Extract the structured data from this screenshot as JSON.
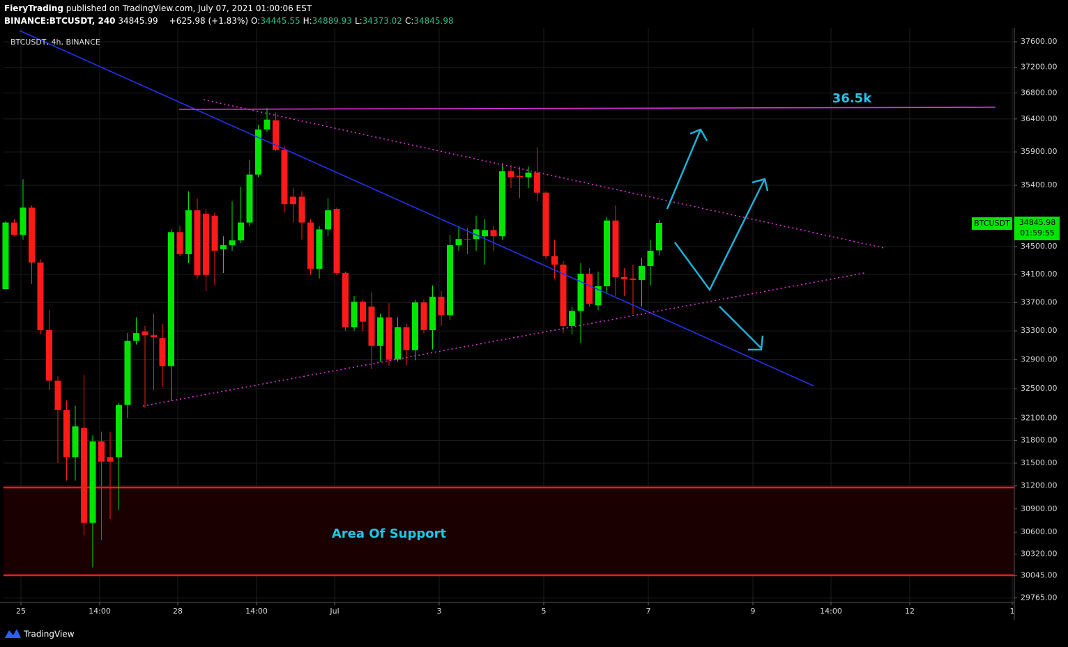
{
  "header": {
    "author": "FieryTrading",
    "published": "published on TradingView.com, July 07, 2021 01:00:06 EST",
    "symbol": "BINANCE:BTCUSDT, 240",
    "price": "34845.99",
    "change": "+625.98 (+1.83%)",
    "ohlc": [
      {
        "key": "O:",
        "value": "34445.55"
      },
      {
        "key": "H:",
        "value": "34889.93"
      },
      {
        "key": "L:",
        "value": "34373.02"
      },
      {
        "key": "C:",
        "value": "34845.98"
      }
    ]
  },
  "chart_data": {
    "type": "candlestick",
    "legend": "BTCUSDT, 4h, BINANCE",
    "log_scale": true,
    "grid": true,
    "up_color": "#00e600",
    "down_color": "#ff1a1a",
    "annotations": [
      "36.5k",
      "Area Of Support"
    ],
    "last_price": {
      "symbol": "BTCUSDT",
      "price": "34845.98",
      "countdown": "01:59:55"
    },
    "x": [
      0,
      1,
      2,
      3,
      4,
      5,
      6,
      7,
      8,
      9,
      10,
      11,
      12,
      13,
      14,
      15,
      16,
      17,
      18,
      19,
      20,
      21,
      22,
      23,
      24,
      25,
      26,
      27,
      28,
      29,
      30,
      31,
      32,
      33,
      34,
      35,
      36,
      37,
      38,
      39,
      40,
      41,
      42,
      43,
      44,
      45,
      46,
      47,
      48,
      49,
      50,
      51,
      52,
      53,
      54,
      55,
      56,
      57,
      58,
      59,
      60,
      61,
      62,
      63,
      64,
      65,
      66,
      67,
      68,
      69,
      70,
      71,
      72,
      73,
      74,
      75
    ],
    "open": [
      33890,
      34850,
      34670,
      35070,
      34270,
      33310,
      32610,
      32210,
      31580,
      31970,
      30720,
      31790,
      31580,
      31580,
      32280,
      33160,
      33290,
      33240,
      33200,
      32810,
      34710,
      34390,
      35030,
      34980,
      34950,
      34460,
      34520,
      34590,
      34850,
      35560,
      36240,
      36380,
      35930,
      35230,
      35230,
      34850,
      34180,
      34750,
      35050,
      34120,
      33350,
      33710,
      33640,
      33090,
      33490,
      32900,
      33350,
      33030,
      33700,
      33310,
      33780,
      33520,
      34520,
      34610,
      34610,
      34650,
      34740,
      34650,
      35610,
      35540,
      35520,
      35590,
      35290,
      34360,
      34240,
      33370,
      33580,
      34110,
      33660,
      33930,
      34880,
      34060,
      34040,
      34020,
      34220,
      34445.55
    ],
    "high": [
      34870,
      34900,
      35490,
      35100,
      34320,
      33590,
      32670,
      32340,
      32270,
      32690,
      31870,
      31920,
      31920,
      32310,
      33270,
      33490,
      33370,
      33540,
      33400,
      34750,
      34800,
      35310,
      35210,
      35050,
      35000,
      34650,
      35160,
      35380,
      35780,
      36310,
      36570,
      36500,
      35990,
      35360,
      35310,
      34900,
      34800,
      35210,
      35070,
      34140,
      33790,
      33740,
      33840,
      33540,
      33690,
      33490,
      33400,
      33740,
      33740,
      33940,
      33860,
      34670,
      34800,
      34770,
      34950,
      34900,
      34800,
      35730,
      35700,
      35680,
      35680,
      35970,
      35310,
      34600,
      34290,
      33640,
      34260,
      34190,
      34140,
      34930,
      35100,
      34190,
      34240,
      34340,
      34600,
      34889.93
    ],
    "low": [
      33890,
      34650,
      34600,
      33960,
      33250,
      32480,
      31500,
      31270,
      31270,
      30560,
      30150,
      30500,
      30770,
      30890,
      32100,
      33110,
      32240,
      32480,
      32530,
      32340,
      34360,
      34260,
      34040,
      33860,
      33940,
      34120,
      34440,
      34550,
      34800,
      35520,
      36200,
      35910,
      35000,
      34850,
      34600,
      34090,
      34040,
      34650,
      34090,
      33300,
      33300,
      33300,
      32770,
      32870,
      32820,
      32870,
      32820,
      32890,
      33270,
      33040,
      33370,
      33450,
      34440,
      34390,
      34440,
      34240,
      34440,
      34600,
      35360,
      35210,
      35360,
      35160,
      34320,
      34040,
      33270,
      33250,
      33130,
      33640,
      33590,
      33840,
      33790,
      33790,
      33540,
      33640,
      33940,
      34373.02
    ],
    "close": [
      34850,
      34670,
      35070,
      34270,
      33310,
      32610,
      32210,
      31580,
      31990,
      30720,
      31790,
      31520,
      31520,
      32280,
      33160,
      33270,
      33240,
      33210,
      32810,
      34710,
      34390,
      35030,
      34090,
      34090,
      34440,
      34520,
      34590,
      34850,
      35560,
      36240,
      36390,
      35930,
      35120,
      35120,
      34850,
      34180,
      34750,
      35030,
      34120,
      33350,
      33710,
      33430,
      33090,
      33490,
      32900,
      33350,
      33030,
      33700,
      33310,
      33780,
      33520,
      34520,
      34610,
      34600,
      34750,
      34740,
      34650,
      35610,
      35520,
      35520,
      35590,
      35290,
      34360,
      34240,
      33370,
      33580,
      34110,
      33680,
      33930,
      34880,
      34060,
      34030,
      34020,
      34220,
      34440,
      34845.98
    ],
    "xlim": [
      -0.24,
      115.76
    ],
    "xticks": [
      {
        "value": 1.76,
        "label": "25"
      },
      {
        "value": 10.8,
        "label": "14:00"
      },
      {
        "value": 19.76,
        "label": "28"
      },
      {
        "value": 28.8,
        "label": "14:00"
      },
      {
        "value": 37.76,
        "label": "Jul"
      },
      {
        "value": 49.76,
        "label": "3"
      },
      {
        "value": 61.76,
        "label": "5"
      },
      {
        "value": 73.76,
        "label": "7"
      },
      {
        "value": 85.76,
        "label": "9"
      },
      {
        "value": 94.72,
        "label": "14:00"
      },
      {
        "value": 103.76,
        "label": "12"
      },
      {
        "value": 115.52,
        "label": "1"
      }
    ],
    "ylim": [
      29710,
      37820
    ],
    "yticks": [
      {
        "value": 37600,
        "label": "37600.00"
      },
      {
        "value": 37200,
        "label": "37200.00"
      },
      {
        "value": 36800,
        "label": "36800.00"
      },
      {
        "value": 36400,
        "label": "36400.00"
      },
      {
        "value": 35900,
        "label": "35900.00"
      },
      {
        "value": 35400,
        "label": "35400.00"
      },
      {
        "value": 34500,
        "label": "34500.00"
      },
      {
        "value": 34100,
        "label": "34100.00"
      },
      {
        "value": 33700,
        "label": "33700.00"
      },
      {
        "value": 33300,
        "label": "33300.00"
      },
      {
        "value": 32900,
        "label": "32900.00"
      },
      {
        "value": 32500,
        "label": "32500.00"
      },
      {
        "value": 32100,
        "label": "32100.00"
      },
      {
        "value": 31800,
        "label": "31800.00"
      },
      {
        "value": 31500,
        "label": "31500.00"
      },
      {
        "value": 31200,
        "label": "31200.00"
      },
      {
        "value": 30900,
        "label": "30900.00"
      },
      {
        "value": 30600,
        "label": "30600.00"
      },
      {
        "value": 30320,
        "label": "30320.00"
      },
      {
        "value": 30045,
        "label": "30045.00"
      },
      {
        "value": 29765,
        "label": "29765.00"
      }
    ]
  },
  "footer": {
    "brand": "TradingView"
  }
}
